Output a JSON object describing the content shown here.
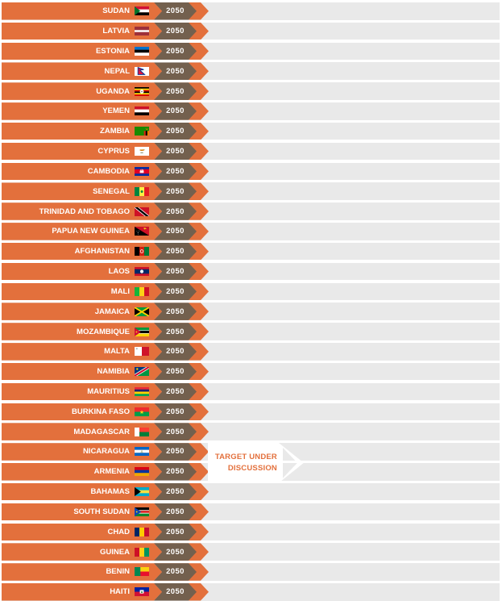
{
  "colors": {
    "orange": "#e3703c",
    "brown": "#73604e",
    "track": "#e9e9e9",
    "banner_text": "#e3703c"
  },
  "banner": {
    "line1": "TARGET UNDER",
    "line2": "DISCUSSION"
  },
  "chart_data": {
    "type": "table",
    "title": "",
    "columns": [
      "country",
      "target_year"
    ],
    "note": "TARGET UNDER DISCUSSION applies to NICARAGUA"
  },
  "rows": [
    {
      "country": "SUDAN",
      "year": "2050",
      "flag": "sudan"
    },
    {
      "country": "LATVIA",
      "year": "2050",
      "flag": "latvia"
    },
    {
      "country": "ESTONIA",
      "year": "2050",
      "flag": "estonia"
    },
    {
      "country": "NEPAL",
      "year": "2050",
      "flag": "nepal"
    },
    {
      "country": "UGANDA",
      "year": "2050",
      "flag": "uganda"
    },
    {
      "country": "YEMEN",
      "year": "2050",
      "flag": "yemen"
    },
    {
      "country": "ZAMBIA",
      "year": "2050",
      "flag": "zambia"
    },
    {
      "country": "CYPRUS",
      "year": "2050",
      "flag": "cyprus"
    },
    {
      "country": "CAMBODIA",
      "year": "2050",
      "flag": "cambodia"
    },
    {
      "country": "SENEGAL",
      "year": "2050",
      "flag": "senegal"
    },
    {
      "country": "TRINIDAD AND TOBAGO",
      "year": "2050",
      "flag": "trinidad"
    },
    {
      "country": "PAPUA NEW GUINEA",
      "year": "2050",
      "flag": "png"
    },
    {
      "country": "AFGHANISTAN",
      "year": "2050",
      "flag": "afghanistan"
    },
    {
      "country": "LAOS",
      "year": "2050",
      "flag": "laos"
    },
    {
      "country": "MALI",
      "year": "2050",
      "flag": "mali"
    },
    {
      "country": "JAMAICA",
      "year": "2050",
      "flag": "jamaica"
    },
    {
      "country": "MOZAMBIQUE",
      "year": "2050",
      "flag": "mozambique"
    },
    {
      "country": "MALTA",
      "year": "2050",
      "flag": "malta"
    },
    {
      "country": "NAMIBIA",
      "year": "2050",
      "flag": "namibia"
    },
    {
      "country": "MAURITIUS",
      "year": "2050",
      "flag": "mauritius"
    },
    {
      "country": "BURKINA FASO",
      "year": "2050",
      "flag": "burkina"
    },
    {
      "country": "MADAGASCAR",
      "year": "2050",
      "flag": "madagascar"
    },
    {
      "country": "NICARAGUA",
      "year": "2050",
      "flag": "nicaragua"
    },
    {
      "country": "ARMENIA",
      "year": "2050",
      "flag": "armenia"
    },
    {
      "country": "BAHAMAS",
      "year": "2050",
      "flag": "bahamas"
    },
    {
      "country": "SOUTH SUDAN",
      "year": "2050",
      "flag": "south_sudan"
    },
    {
      "country": "CHAD",
      "year": "2050",
      "flag": "chad"
    },
    {
      "country": "GUINEA",
      "year": "2050",
      "flag": "guinea"
    },
    {
      "country": "BENIN",
      "year": "2050",
      "flag": "benin"
    },
    {
      "country": "HAITI",
      "year": "2050",
      "flag": "haiti"
    }
  ]
}
